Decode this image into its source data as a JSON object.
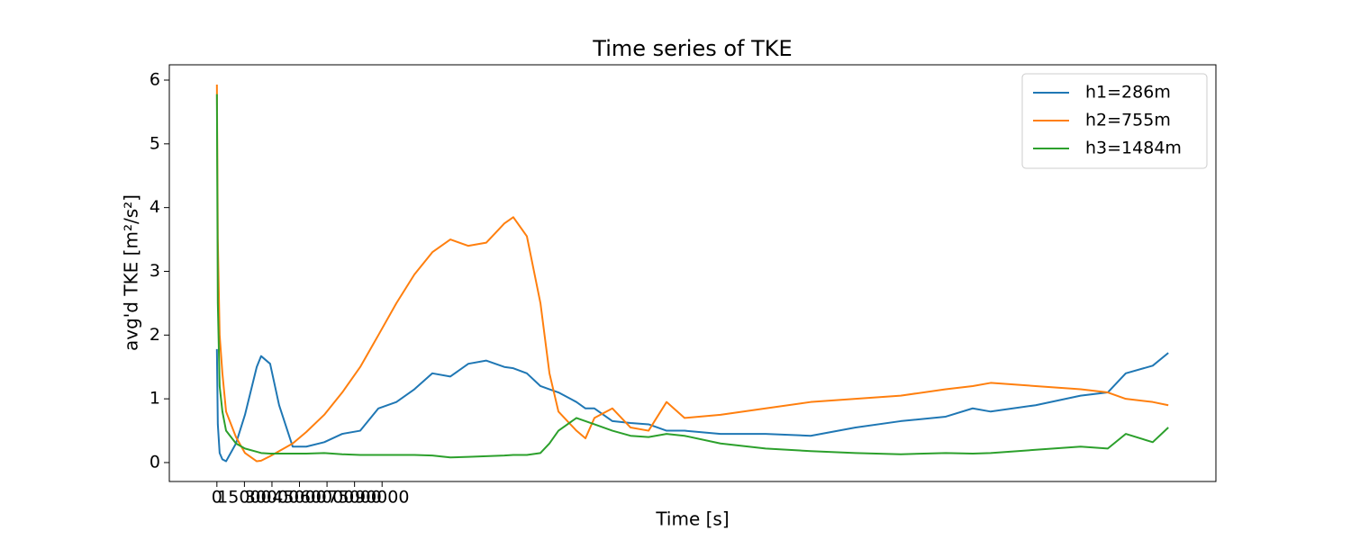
{
  "chart_data": {
    "type": "line",
    "title": "Time series of TKE",
    "xlabel": "Time [s]",
    "ylabel": "avg'd TKE [m²/s²]",
    "x": [
      0,
      500,
      1500,
      3000,
      5000,
      10400,
      15300,
      21700,
      24100,
      29000,
      33900,
      41300,
      48700,
      58500,
      68300,
      78100,
      88000,
      97800,
      107600,
      117400,
      127200,
      137000,
      146800,
      156600,
      161500,
      168900,
      176300,
      181200,
      186100,
      195900,
      200800,
      205700,
      215500,
      225400,
      235200,
      245000,
      254800,
      274400,
      299000,
      323500,
      348000,
      372600,
      397100,
      411800,
      421600,
      446100,
      470600,
      485400,
      495200,
      509900,
      518400
    ],
    "series": [
      {
        "name": "h1=286m",
        "color": "#1f77b4",
        "values": [
          1.78,
          0.6,
          0.15,
          0.05,
          0.02,
          0.3,
          0.75,
          1.5,
          1.67,
          1.55,
          0.9,
          0.25,
          0.25,
          0.32,
          0.45,
          0.5,
          0.85,
          0.95,
          1.15,
          1.4,
          1.35,
          1.55,
          1.6,
          1.5,
          1.48,
          1.4,
          1.2,
          1.15,
          1.1,
          0.95,
          0.85,
          0.85,
          0.65,
          0.62,
          0.6,
          0.5,
          0.5,
          0.45,
          0.45,
          0.42,
          0.55,
          0.65,
          0.72,
          0.85,
          0.8,
          0.9,
          1.05,
          1.1,
          1.4,
          1.52,
          1.72
        ]
      },
      {
        "name": "h2=755m",
        "color": "#ff7f0e",
        "values": [
          5.93,
          3.5,
          2.0,
          1.4,
          0.8,
          0.4,
          0.15,
          0.02,
          0.03,
          0.1,
          0.18,
          0.3,
          0.48,
          0.75,
          1.1,
          1.5,
          2.0,
          2.5,
          2.95,
          3.3,
          3.5,
          3.4,
          3.45,
          3.75,
          3.85,
          3.55,
          2.5,
          1.4,
          0.8,
          0.5,
          0.38,
          0.7,
          0.85,
          0.55,
          0.5,
          0.95,
          0.7,
          0.75,
          0.85,
          0.95,
          1.0,
          1.05,
          1.15,
          1.2,
          1.25,
          1.2,
          1.15,
          1.1,
          1.0,
          0.95,
          0.9
        ]
      },
      {
        "name": "h3=1484m",
        "color": "#2ca02c",
        "values": [
          5.78,
          2.5,
          1.2,
          0.8,
          0.5,
          0.3,
          0.22,
          0.17,
          0.15,
          0.14,
          0.14,
          0.14,
          0.14,
          0.15,
          0.13,
          0.12,
          0.12,
          0.12,
          0.12,
          0.11,
          0.08,
          0.09,
          0.1,
          0.11,
          0.12,
          0.12,
          0.15,
          0.3,
          0.5,
          0.7,
          0.65,
          0.6,
          0.5,
          0.42,
          0.4,
          0.45,
          0.42,
          0.3,
          0.22,
          0.18,
          0.15,
          0.13,
          0.15,
          0.14,
          0.15,
          0.2,
          0.25,
          0.22,
          0.45,
          0.32,
          0.55
        ]
      }
    ],
    "xlim": [
      -25920,
      544320
    ],
    "xticks": [
      0,
      15000,
      30000,
      45000,
      60000,
      75000,
      90000
    ],
    "ylim": [
      -0.297,
      6.24
    ],
    "yticks": [
      0,
      1,
      2,
      3,
      4,
      5,
      6
    ],
    "legend": "upper right",
    "grid": false
  }
}
